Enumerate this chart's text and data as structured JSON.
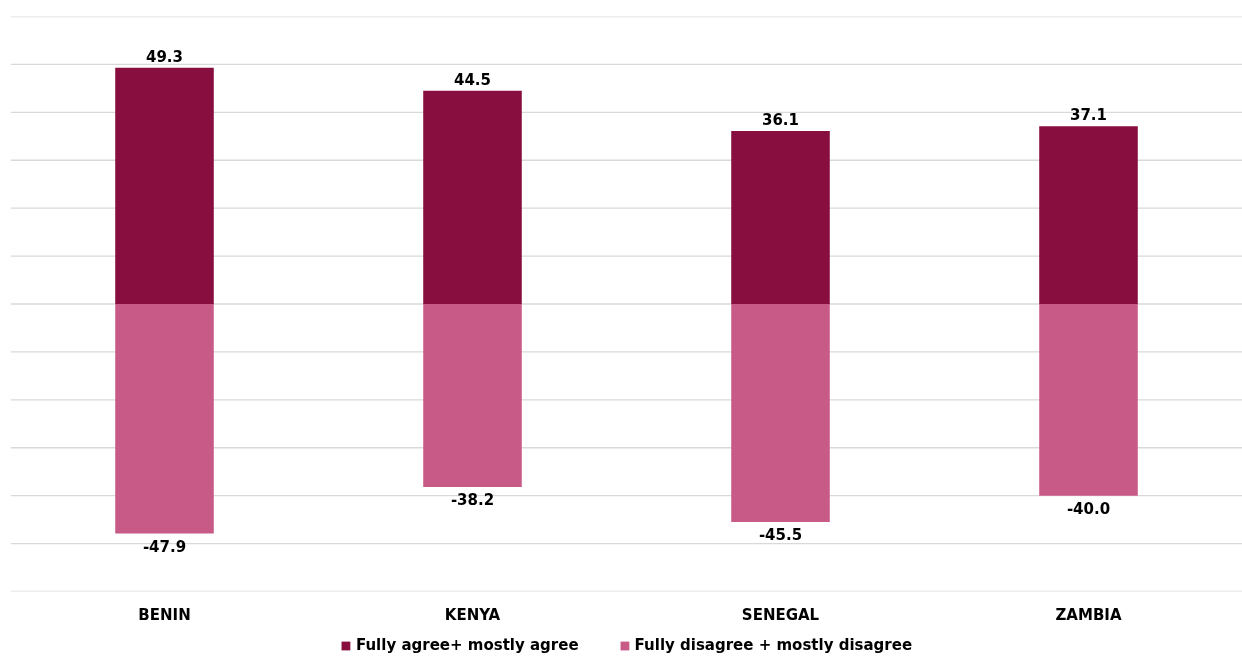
{
  "chart_data": {
    "type": "bar",
    "stacked": true,
    "categories": [
      "BENIN",
      "KENYA",
      "SENEGAL",
      "ZAMBIA"
    ],
    "series": [
      {
        "name": "Fully agree+ mostly agree",
        "color": "#870e3f",
        "values": [
          49.3,
          44.5,
          36.1,
          37.1
        ],
        "value_labels": [
          "49.3",
          "44.5",
          "36.1",
          "37.1"
        ]
      },
      {
        "name": "Fully disagree + mostly disagree",
        "color": "#c85a87",
        "values": [
          -47.9,
          -38.2,
          -45.5,
          -40.0
        ],
        "value_labels": [
          "-47.9",
          "-38.2",
          "-45.5",
          "-40.0"
        ]
      }
    ],
    "ylim": [
      -60,
      60
    ],
    "yticks": [
      {
        "value": -60,
        "label": null
      },
      {
        "value": -50,
        "label": null
      },
      {
        "value": -40,
        "label": null
      },
      {
        "value": -30,
        "label": null
      },
      {
        "value": -20,
        "label": null
      },
      {
        "value": -10,
        "label": null
      },
      {
        "value": 0,
        "label": null
      },
      {
        "value": 10,
        "label": null
      },
      {
        "value": 20,
        "label": null
      },
      {
        "value": 30,
        "label": null
      },
      {
        "value": 40,
        "label": null
      },
      {
        "value": 50,
        "label": null
      },
      {
        "value": 60,
        "label": null
      }
    ],
    "grid": "y",
    "legend": "bottom",
    "tick_labels": "x"
  }
}
